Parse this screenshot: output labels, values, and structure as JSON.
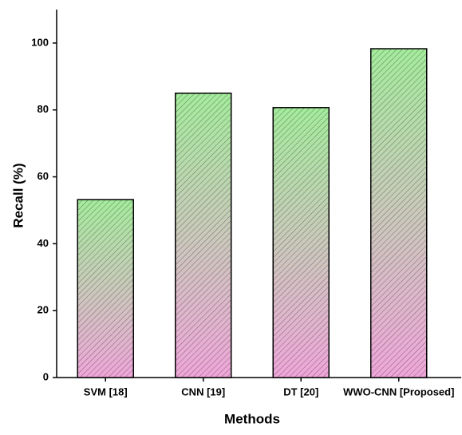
{
  "chart_data": {
    "type": "bar",
    "x_label": "Methods",
    "y_label": "Recall (%)",
    "categories": [
      "SVM [18]",
      "CNN [19]",
      "DT [20]",
      "WWO-CNN [Proposed]"
    ],
    "values": [
      53.2,
      85.0,
      80.7,
      98.3
    ],
    "gradient_top": "#a4ec9c",
    "gradient_bottom": "#f0a6da",
    "ylim": [
      0,
      110
    ],
    "yticks": [
      0,
      20,
      40,
      60,
      80,
      100
    ],
    "grid": false
  }
}
